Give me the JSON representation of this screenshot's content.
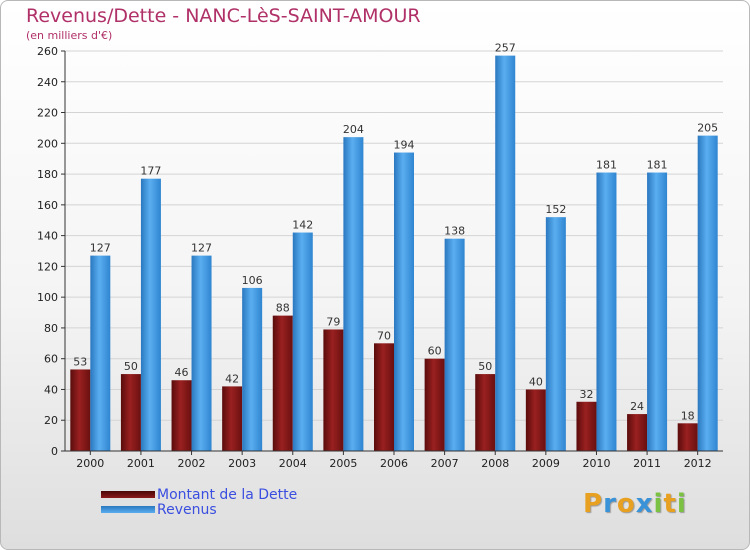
{
  "chart_data": {
    "type": "bar",
    "title": "Revenus/Dette - NANC-LèS-SAINT-AMOUR",
    "subtitle": "(en milliers d'€)",
    "categories": [
      "2000",
      "2001",
      "2002",
      "2003",
      "2004",
      "2005",
      "2006",
      "2007",
      "2008",
      "2009",
      "2010",
      "2011",
      "2012"
    ],
    "series": [
      {
        "name": "Montant de la Dette",
        "color": "#8b1a1a",
        "values": [
          53,
          50,
          46,
          42,
          88,
          79,
          70,
          60,
          50,
          40,
          32,
          24,
          18
        ]
      },
      {
        "name": "Revenus",
        "color": "#3a93d8",
        "values": [
          127,
          177,
          127,
          106,
          142,
          204,
          194,
          138,
          257,
          152,
          181,
          181,
          205
        ]
      }
    ],
    "ylim": [
      0,
      260
    ],
    "yticks": [
      0,
      20,
      40,
      60,
      80,
      100,
      120,
      140,
      160,
      180,
      200,
      220,
      240,
      260
    ],
    "grid": true,
    "legend_position": "bottom-left"
  },
  "logo": {
    "letters": [
      "P",
      "r",
      "o",
      "x",
      "i",
      "t",
      "i"
    ],
    "colors": [
      "#e8a020",
      "#3a93d8",
      "#e8a020",
      "#3a93d8",
      "#7cc242",
      "#e8a020",
      "#7cc242"
    ]
  }
}
